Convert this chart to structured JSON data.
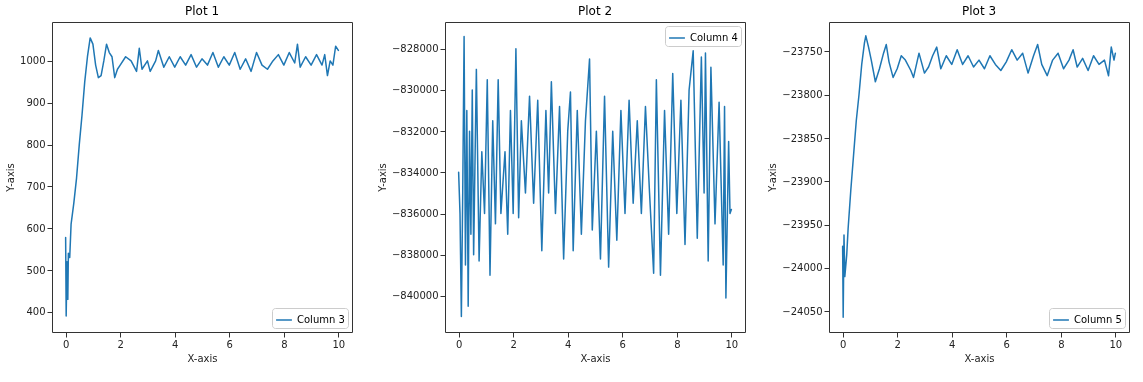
{
  "chart_data": [
    {
      "type": "line",
      "title": "Plot 1",
      "xlabel": "X-axis",
      "ylabel": "Y-axis",
      "legend": "bottom right",
      "xlim": [
        -0.5,
        10.5
      ],
      "ylim": [
        352,
        1093
      ],
      "xticks": [
        0,
        2,
        4,
        6,
        8,
        10
      ],
      "yticks": [
        400,
        500,
        600,
        700,
        800,
        900,
        1000
      ],
      "x": [
        0,
        0.02,
        0.05,
        0.08,
        0.1,
        0.15,
        0.2,
        0.3,
        0.4,
        0.5,
        0.6,
        0.7,
        0.8,
        0.9,
        1.0,
        1.1,
        1.2,
        1.3,
        1.4,
        1.5,
        1.6,
        1.7,
        1.8,
        1.9,
        2.0,
        2.2,
        2.4,
        2.6,
        2.7,
        2.8,
        3.0,
        3.1,
        3.3,
        3.4,
        3.6,
        3.8,
        4.0,
        4.2,
        4.4,
        4.6,
        4.8,
        5.0,
        5.2,
        5.4,
        5.6,
        5.8,
        6.0,
        6.2,
        6.4,
        6.6,
        6.8,
        7.0,
        7.2,
        7.4,
        7.6,
        7.8,
        8.0,
        8.2,
        8.4,
        8.5,
        8.6,
        8.8,
        9.0,
        9.2,
        9.4,
        9.5,
        9.6,
        9.7,
        9.8,
        9.9,
        10.0
      ],
      "series": [
        {
          "name": "Column 3",
          "color": "#1f77b4",
          "values": [
            578,
            390,
            520,
            430,
            540,
            530,
            610,
            660,
            720,
            800,
            870,
            950,
            1010,
            1055,
            1040,
            990,
            960,
            965,
            1000,
            1040,
            1020,
            1010,
            960,
            980,
            990,
            1010,
            1000,
            975,
            1030,
            980,
            1000,
            975,
            1000,
            1025,
            985,
            1010,
            985,
            1010,
            990,
            1015,
            985,
            1005,
            990,
            1020,
            985,
            1010,
            990,
            1020,
            980,
            1005,
            975,
            1020,
            990,
            980,
            1000,
            1015,
            990,
            1020,
            995,
            1040,
            985,
            1010,
            990,
            1015,
            990,
            1015,
            965,
            1000,
            990,
            1035,
            1025
          ]
        }
      ]
    },
    {
      "type": "line",
      "title": "Plot 2",
      "xlabel": "X-axis",
      "ylabel": "Y-axis",
      "legend": "top right",
      "xlim": [
        -0.5,
        10.5
      ],
      "ylim": [
        -841750,
        -826700
      ],
      "xticks": [
        0,
        2,
        4,
        6,
        8,
        10
      ],
      "yticks": [
        {
          "value": -840000,
          "label": "−840000"
        },
        {
          "value": -838000,
          "label": "−838000"
        },
        {
          "value": -836000,
          "label": "−836000"
        },
        {
          "value": -834000,
          "label": "−834000"
        },
        {
          "value": -832000,
          "label": "−832000"
        },
        {
          "value": -830000,
          "label": "−830000"
        },
        {
          "value": -828000,
          "label": "−828000"
        }
      ],
      "x": [
        0,
        0.05,
        0.1,
        0.15,
        0.2,
        0.25,
        0.3,
        0.35,
        0.4,
        0.45,
        0.5,
        0.55,
        0.65,
        0.75,
        0.85,
        0.95,
        1.05,
        1.15,
        1.25,
        1.35,
        1.45,
        1.55,
        1.7,
        1.8,
        1.9,
        2.0,
        2.1,
        2.2,
        2.3,
        2.45,
        2.6,
        2.75,
        2.9,
        3.05,
        3.2,
        3.3,
        3.4,
        3.55,
        3.7,
        3.85,
        4.0,
        4.1,
        4.2,
        4.35,
        4.5,
        4.65,
        4.8,
        4.9,
        5.05,
        5.2,
        5.35,
        5.5,
        5.65,
        5.8,
        5.95,
        6.1,
        6.25,
        6.4,
        6.55,
        6.7,
        6.85,
        7.0,
        7.15,
        7.25,
        7.4,
        7.55,
        7.7,
        7.85,
        8.0,
        8.15,
        8.3,
        8.45,
        8.6,
        8.75,
        8.9,
        9.0,
        9.05,
        9.15,
        9.25,
        9.4,
        9.55,
        9.7,
        9.75,
        9.8,
        9.9,
        9.95,
        10.0
      ],
      "series": [
        {
          "name": "Column 4",
          "color": "#1f77b4",
          "values": [
            -834000,
            -836000,
            -841000,
            -835000,
            -827400,
            -838500,
            -831000,
            -840500,
            -832000,
            -837000,
            -830000,
            -838000,
            -829000,
            -838300,
            -833000,
            -836000,
            -829500,
            -839000,
            -831500,
            -836500,
            -829500,
            -836000,
            -833000,
            -837000,
            -831000,
            -836000,
            -828000,
            -836200,
            -831500,
            -835000,
            -830300,
            -835500,
            -830500,
            -837800,
            -831000,
            -835000,
            -829600,
            -836000,
            -830800,
            -838200,
            -832000,
            -830100,
            -837800,
            -831000,
            -837000,
            -831500,
            -828500,
            -836800,
            -832000,
            -838200,
            -830300,
            -838600,
            -832000,
            -837300,
            -831000,
            -836000,
            -830500,
            -835500,
            -831500,
            -836000,
            -830800,
            -835000,
            -838900,
            -829500,
            -839000,
            -831000,
            -837000,
            -829200,
            -836000,
            -830500,
            -837500,
            -830000,
            -828100,
            -837200,
            -828400,
            -835000,
            -828200,
            -838300,
            -828900,
            -836500,
            -830600,
            -838500,
            -830800,
            -840100,
            -832500,
            -836000,
            -835800
          ]
        }
      ]
    },
    {
      "type": "line",
      "title": "Plot 3",
      "xlabel": "X-axis",
      "ylabel": "Y-axis",
      "legend": "bottom right",
      "xlim": [
        -0.5,
        10.5
      ],
      "ylim": [
        -24074,
        -23716
      ],
      "xticks": [
        0,
        2,
        4,
        6,
        8,
        10
      ],
      "yticks": [
        {
          "value": -24050,
          "label": "−24050"
        },
        {
          "value": -24000,
          "label": "−24000"
        },
        {
          "value": -23950,
          "label": "−23950"
        },
        {
          "value": -23900,
          "label": "−23900"
        },
        {
          "value": -23850,
          "label": "−23850"
        },
        {
          "value": -23800,
          "label": "−23800"
        },
        {
          "value": -23750,
          "label": "−23750"
        }
      ],
      "x": [
        0,
        0.02,
        0.05,
        0.08,
        0.15,
        0.2,
        0.3,
        0.4,
        0.5,
        0.6,
        0.7,
        0.8,
        0.85,
        0.95,
        1.05,
        1.2,
        1.35,
        1.5,
        1.6,
        1.7,
        1.85,
        2.0,
        2.15,
        2.3,
        2.5,
        2.6,
        2.8,
        3.0,
        3.15,
        3.3,
        3.45,
        3.6,
        3.8,
        4.0,
        4.2,
        4.4,
        4.6,
        4.8,
        5.0,
        5.2,
        5.4,
        5.6,
        5.8,
        6.0,
        6.2,
        6.4,
        6.6,
        6.8,
        7.0,
        7.15,
        7.3,
        7.5,
        7.7,
        7.9,
        8.1,
        8.3,
        8.45,
        8.6,
        8.8,
        9.0,
        9.2,
        9.4,
        9.6,
        9.75,
        9.85,
        9.95,
        10.0
      ],
      "series": [
        {
          "name": "Column 5",
          "color": "#1f77b4",
          "values": [
            -23975,
            -24057,
            -23962,
            -24010,
            -23985,
            -23955,
            -23910,
            -23870,
            -23830,
            -23800,
            -23765,
            -23740,
            -23732,
            -23745,
            -23760,
            -23785,
            -23770,
            -23752,
            -23742,
            -23762,
            -23780,
            -23770,
            -23755,
            -23760,
            -23772,
            -23780,
            -23752,
            -23775,
            -23768,
            -23755,
            -23745,
            -23770,
            -23755,
            -23765,
            -23748,
            -23765,
            -23755,
            -23768,
            -23760,
            -23770,
            -23755,
            -23765,
            -23772,
            -23762,
            -23748,
            -23760,
            -23752,
            -23775,
            -23755,
            -23742,
            -23765,
            -23778,
            -23760,
            -23752,
            -23770,
            -23760,
            -23748,
            -23768,
            -23758,
            -23772,
            -23755,
            -23765,
            -23760,
            -23778,
            -23745,
            -23760,
            -23752
          ]
        }
      ]
    }
  ]
}
